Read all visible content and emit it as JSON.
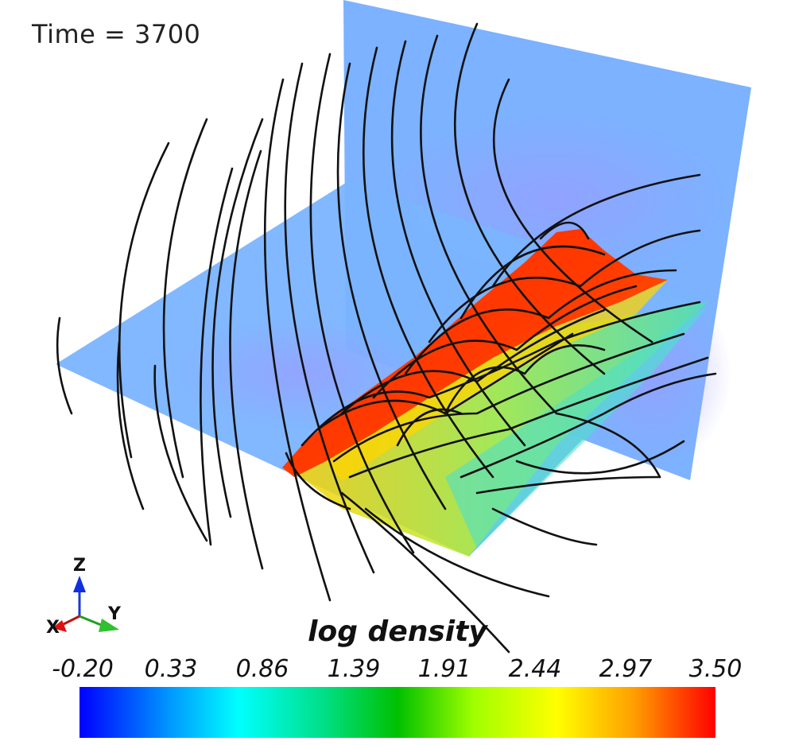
{
  "time_label": "Time = 3700",
  "colorbar": {
    "title": "log density",
    "ticks": [
      "-0.20",
      "0.33",
      "0.86",
      "1.39",
      "1.91",
      "2.44",
      "2.97",
      "3.50"
    ],
    "range": [
      -0.2,
      3.5
    ],
    "colors": [
      "#0000ff",
      "#00ffff",
      "#00c000",
      "#ffff00",
      "#ff0000"
    ]
  },
  "axes": {
    "z": "Z",
    "y": "Y",
    "x": "X"
  },
  "scene": {
    "background": "#ffffff",
    "slice_color": "#7cb2ff",
    "streamline_color": "#111111",
    "dense_region_colors": [
      "#ff2a00",
      "#ffd000",
      "#a8f03c",
      "#40e0c0"
    ]
  }
}
